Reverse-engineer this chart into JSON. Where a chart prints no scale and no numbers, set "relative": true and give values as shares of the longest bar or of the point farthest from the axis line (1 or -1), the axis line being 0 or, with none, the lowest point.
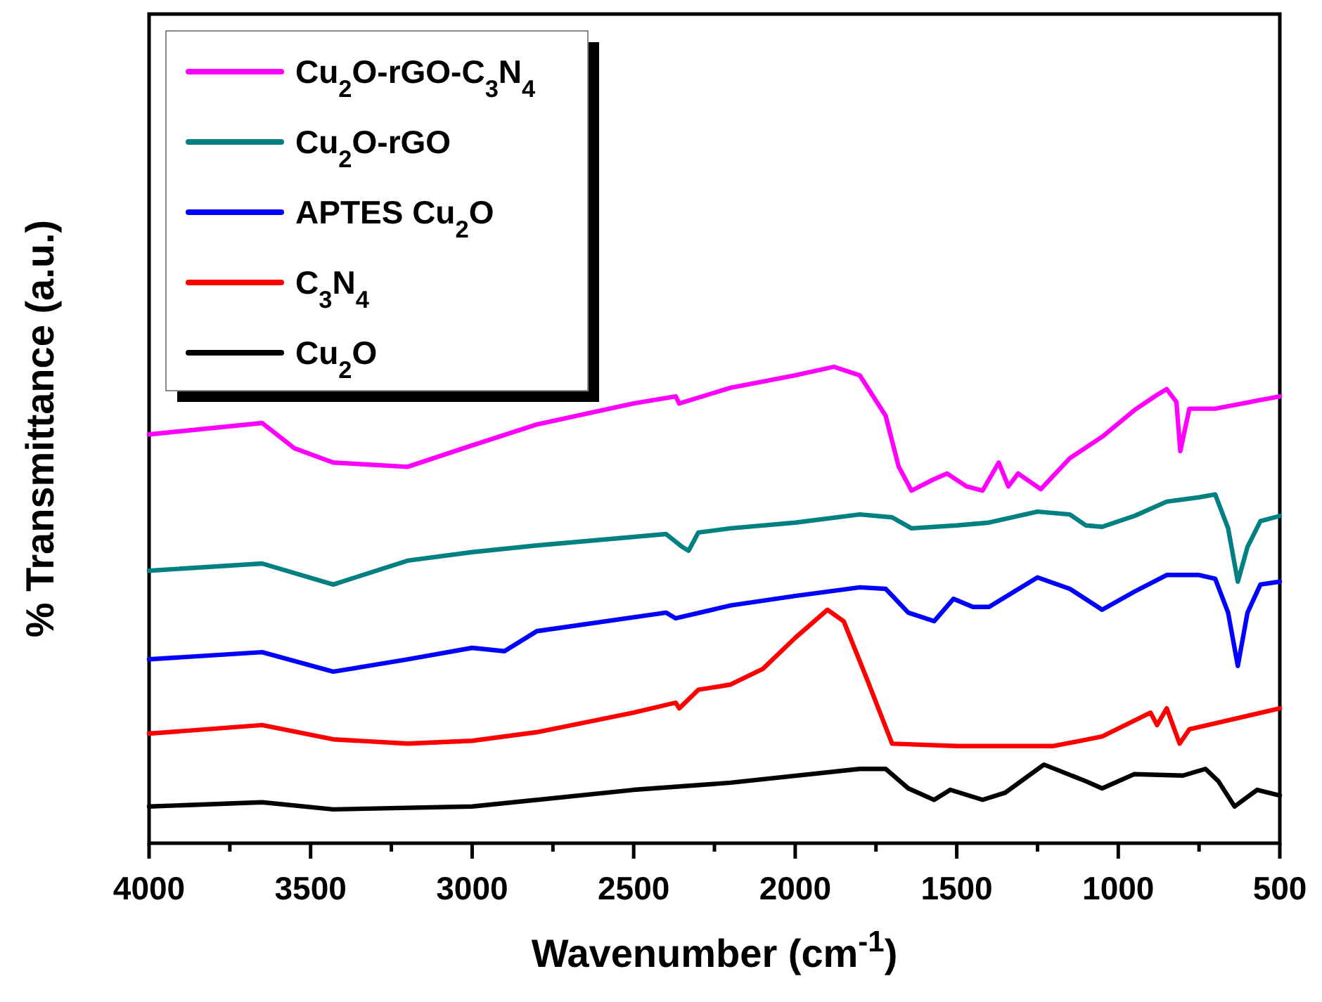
{
  "chart_data": {
    "type": "line",
    "xlabel": "Wavenumber (cm$^{-1}$)",
    "ylabel": "% Transmittance (a.u.)",
    "relative": true,
    "legend": "top left",
    "xlim": [
      4000,
      500
    ],
    "xticks": [
      4000,
      {
        "value": 3750,
        "label": null
      },
      3500,
      {
        "value": 3250,
        "label": null
      },
      3000,
      {
        "value": 2750,
        "label": null
      },
      2500,
      {
        "value": 2250,
        "label": null
      },
      2000,
      {
        "value": 1750,
        "label": null
      },
      1500,
      {
        "value": 1250,
        "label": null
      },
      1000,
      {
        "value": 750,
        "label": null
      },
      500
    ],
    "series": [
      {
        "name": "Cu$_{2}$O-rGO-C$_{3}$N$_{4}$",
        "color": "#ff00ff",
        "x": [
          4000,
          3650,
          3550,
          3430,
          3200,
          3000,
          2800,
          2500,
          2370,
          2359,
          2200,
          2000,
          1880,
          1800,
          1720,
          1680,
          1640,
          1580,
          1530,
          1470,
          1420,
          1370,
          1340,
          1310,
          1240,
          1150,
          1050,
          950,
          880,
          850,
          820,
          808,
          780,
          700,
          500
        ],
        "values": [
          0.858,
          0.882,
          0.829,
          0.799,
          0.79,
          0.835,
          0.879,
          0.923,
          0.938,
          0.923,
          0.956,
          0.982,
          1,
          0.982,
          0.897,
          0.791,
          0.74,
          0.761,
          0.776,
          0.749,
          0.74,
          0.799,
          0.749,
          0.776,
          0.743,
          0.808,
          0.853,
          0.909,
          0.941,
          0.953,
          0.926,
          0.823,
          0.912,
          0.912,
          0.938
        ]
      },
      {
        "name": "Cu$_{2}$O-rGO",
        "color": "#008080",
        "x": [
          4000,
          3650,
          3430,
          3200,
          3000,
          2800,
          2400,
          2350,
          2330,
          2300,
          2200,
          2000,
          1800,
          1700,
          1640,
          1500,
          1400,
          1250,
          1150,
          1100,
          1050,
          950,
          850,
          750,
          700,
          660,
          630,
          600,
          560,
          500
        ],
        "values": [
          0.572,
          0.587,
          0.543,
          0.593,
          0.611,
          0.625,
          0.649,
          0.622,
          0.614,
          0.652,
          0.661,
          0.673,
          0.69,
          0.684,
          0.661,
          0.667,
          0.673,
          0.696,
          0.69,
          0.667,
          0.664,
          0.687,
          0.717,
          0.726,
          0.732,
          0.661,
          0.549,
          0.622,
          0.676,
          0.687
        ]
      },
      {
        "name": "APTES Cu$_{2}$O",
        "color": "#0000ff",
        "x": [
          4000,
          3650,
          3430,
          3200,
          3000,
          2900,
          2800,
          2400,
          2370,
          2200,
          2000,
          1800,
          1720,
          1650,
          1570,
          1510,
          1450,
          1400,
          1250,
          1150,
          1050,
          950,
          850,
          750,
          700,
          660,
          630,
          600,
          560,
          500
        ],
        "values": [
          0.386,
          0.401,
          0.36,
          0.386,
          0.41,
          0.403,
          0.445,
          0.484,
          0.472,
          0.499,
          0.519,
          0.537,
          0.534,
          0.484,
          0.466,
          0.513,
          0.496,
          0.496,
          0.558,
          0.534,
          0.49,
          0.528,
          0.563,
          0.563,
          0.555,
          0.484,
          0.372,
          0.484,
          0.543,
          0.549
        ]
      },
      {
        "name": "C$_{3}$N$_{4}$",
        "color": "#ff0000",
        "x": [
          4000,
          3650,
          3430,
          3200,
          3000,
          2800,
          2500,
          2370,
          2359,
          2300,
          2200,
          2100,
          2000,
          1900,
          1850,
          1780,
          1700,
          1500,
          1200,
          1050,
          900,
          880,
          850,
          810,
          780,
          500
        ],
        "values": [
          0.23,
          0.248,
          0.218,
          0.209,
          0.215,
          0.233,
          0.274,
          0.295,
          0.283,
          0.322,
          0.333,
          0.366,
          0.431,
          0.49,
          0.466,
          0.348,
          0.209,
          0.204,
          0.204,
          0.224,
          0.274,
          0.248,
          0.283,
          0.209,
          0.239,
          0.283
        ]
      },
      {
        "name": "Cu$_{2}$O",
        "color": "#000000",
        "x": [
          4000,
          3650,
          3430,
          3000,
          2500,
          2200,
          1800,
          1720,
          1650,
          1570,
          1520,
          1420,
          1350,
          1230,
          1100,
          1050,
          950,
          800,
          730,
          690,
          640,
          570,
          500
        ],
        "values": [
          0.077,
          0.086,
          0.071,
          0.077,
          0.112,
          0.127,
          0.156,
          0.156,
          0.115,
          0.091,
          0.112,
          0.091,
          0.106,
          0.165,
          0.13,
          0.115,
          0.145,
          0.142,
          0.156,
          0.13,
          0.077,
          0.112,
          0.1
        ]
      }
    ]
  }
}
